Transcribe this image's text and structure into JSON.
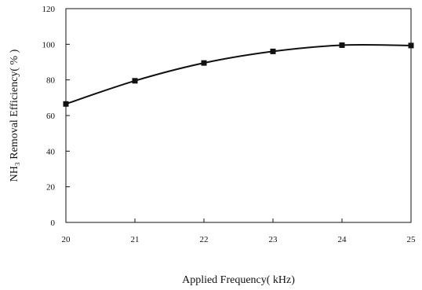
{
  "chart_data": {
    "type": "line",
    "xlabel": "Applied Frequency( kHz)",
    "ylabel": "NH₃ Removal Efficiency( % )",
    "x": [
      20,
      21,
      22,
      23,
      24,
      25
    ],
    "series": [
      {
        "values": [
          66.5,
          79.5,
          89.5,
          96,
          99.5,
          99.3
        ]
      }
    ],
    "xlim": [
      20,
      25
    ],
    "ylim": [
      0,
      120
    ],
    "xticks": [
      20,
      21,
      22,
      23,
      24,
      25
    ],
    "yticks": [
      0,
      20,
      40,
      60,
      80,
      100,
      120
    ],
    "grid": false,
    "marker": "square",
    "line_color": "#111111"
  }
}
